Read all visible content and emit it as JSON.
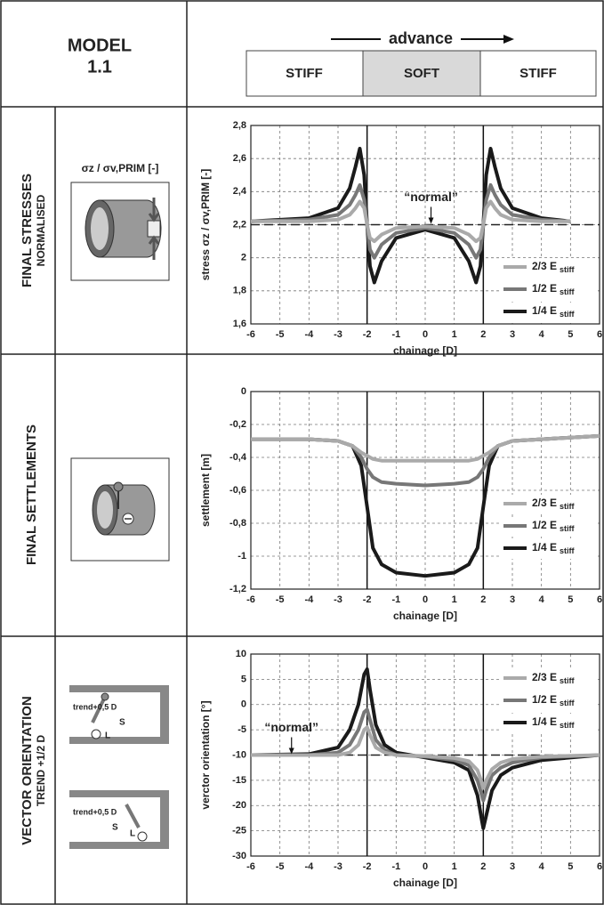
{
  "header": {
    "model": "MODEL",
    "model_no": "1.1",
    "advance": "advance",
    "zones": [
      "STIFF",
      "SOFT",
      "STIFF"
    ]
  },
  "rows": [
    {
      "title": "FINAL STRESSES",
      "subtitle": "NORMALISED",
      "icon_label": "σz / σv,PRIM [-]"
    },
    {
      "title": "FINAL SETTLEMENTS"
    },
    {
      "title": "VECTOR ORIENTATION",
      "subtitle": "TREND +1/2 D",
      "icon_texts": [
        "trend+0,5 D",
        "S",
        "L",
        "trend+0,5 D",
        "S",
        "L"
      ]
    }
  ],
  "chart_data": [
    {
      "type": "line",
      "xlabel": "chainage [D]",
      "ylabel": "stress  σz / σv,PRIM [-]",
      "xlim": [
        -6,
        6
      ],
      "xticks": [
        -6,
        -5,
        -4,
        -3,
        -2,
        -1,
        0,
        1,
        2,
        3,
        4,
        5,
        6
      ],
      "ylim": [
        1.6,
        2.8
      ],
      "yticks": [
        {
          "value": 1.6,
          "label": "1,6"
        },
        {
          "value": 1.8,
          "label": "1,8"
        },
        2,
        {
          "value": 2.2,
          "label": "2,2"
        },
        {
          "value": 2.4,
          "label": "2,4"
        },
        {
          "value": 2.6,
          "label": "2,6"
        },
        {
          "value": 2.8,
          "label": "2,8"
        }
      ],
      "grid": true,
      "reference_line": 2.2,
      "boundaries": [
        -2,
        2
      ],
      "annotation": {
        "text": "“normal”",
        "x": 0.2,
        "y": 2.2
      },
      "x": [
        -6,
        -4,
        -3,
        -2.6,
        -2.4,
        -2.25,
        -2.1,
        -2,
        -1.9,
        -1.75,
        -1.5,
        -1,
        0,
        1,
        1.5,
        1.75,
        1.9,
        2,
        2.1,
        2.25,
        2.4,
        2.6,
        3,
        4,
        5
      ],
      "series": [
        {
          "name": "2/3 E",
          "subscript": "stiff",
          "color": "#aaaaaa",
          "values": [
            2.22,
            2.22,
            2.23,
            2.26,
            2.3,
            2.34,
            2.3,
            2.2,
            2.12,
            2.1,
            2.14,
            2.18,
            2.19,
            2.18,
            2.14,
            2.1,
            2.12,
            2.2,
            2.3,
            2.34,
            2.3,
            2.26,
            2.23,
            2.22,
            2.22
          ]
        },
        {
          "name": "1/2 E",
          "subscript": "stiff",
          "color": "#777777",
          "values": [
            2.22,
            2.23,
            2.26,
            2.32,
            2.38,
            2.44,
            2.35,
            2.2,
            2.05,
            2.0,
            2.08,
            2.15,
            2.18,
            2.15,
            2.08,
            2.0,
            2.05,
            2.2,
            2.35,
            2.44,
            2.38,
            2.32,
            2.26,
            2.23,
            2.22
          ]
        },
        {
          "name": "1/4 E",
          "subscript": "stiff",
          "color": "#1a1a1a",
          "values": [
            2.22,
            2.24,
            2.3,
            2.42,
            2.55,
            2.66,
            2.5,
            2.2,
            1.95,
            1.85,
            1.98,
            2.12,
            2.17,
            2.12,
            1.98,
            1.85,
            1.95,
            2.2,
            2.5,
            2.66,
            2.55,
            2.42,
            2.3,
            2.24,
            2.22
          ]
        }
      ]
    },
    {
      "type": "line",
      "xlabel": "chainage [D]",
      "ylabel": "settlement [m]",
      "xlim": [
        -6,
        6
      ],
      "xticks": [
        -6,
        -5,
        -4,
        -3,
        -2,
        -1,
        0,
        1,
        2,
        3,
        4,
        5,
        6
      ],
      "ylim": [
        -1.2,
        0
      ],
      "yticks": [
        {
          "value": -1.2,
          "label": "-1,2"
        },
        -1,
        {
          "value": -0.8,
          "label": "-0,8"
        },
        {
          "value": -0.6,
          "label": "-0,6"
        },
        {
          "value": -0.4,
          "label": "-0,4"
        },
        {
          "value": -0.2,
          "label": "-0,2"
        },
        0
      ],
      "grid": true,
      "boundaries": [
        -2,
        2
      ],
      "x": [
        -6,
        -4,
        -3,
        -2.5,
        -2.2,
        -2,
        -1.8,
        -1.5,
        -1,
        0,
        1,
        1.5,
        1.8,
        2,
        2.2,
        2.5,
        3,
        4,
        6
      ],
      "series": [
        {
          "name": "2/3 E",
          "subscript": "stiff",
          "color": "#aaaaaa",
          "values": [
            -0.29,
            -0.29,
            -0.3,
            -0.33,
            -0.37,
            -0.39,
            -0.41,
            -0.42,
            -0.42,
            -0.42,
            -0.42,
            -0.42,
            -0.41,
            -0.39,
            -0.37,
            -0.33,
            -0.3,
            -0.29,
            -0.27
          ]
        },
        {
          "name": "1/2 E",
          "subscript": "stiff",
          "color": "#777777",
          "values": [
            -0.29,
            -0.29,
            -0.3,
            -0.33,
            -0.4,
            -0.47,
            -0.52,
            -0.55,
            -0.56,
            -0.57,
            -0.56,
            -0.55,
            -0.52,
            -0.47,
            -0.4,
            -0.33,
            -0.3,
            -0.29,
            -0.27
          ]
        },
        {
          "name": "1/4 E",
          "subscript": "stiff",
          "color": "#1a1a1a",
          "values": [
            -0.29,
            -0.29,
            -0.3,
            -0.33,
            -0.45,
            -0.7,
            -0.95,
            -1.05,
            -1.1,
            -1.12,
            -1.1,
            -1.05,
            -0.95,
            -0.7,
            -0.45,
            -0.33,
            -0.3,
            -0.29,
            -0.27
          ]
        }
      ]
    },
    {
      "type": "line",
      "xlabel": "chainage [D]",
      "ylabel": "verctor orientation [°]",
      "xlim": [
        -6,
        6
      ],
      "xticks": [
        -6,
        -5,
        -4,
        -3,
        -2,
        -1,
        0,
        1,
        2,
        3,
        4,
        5,
        6
      ],
      "ylim": [
        -30,
        10
      ],
      "yticks": [
        -30,
        -25,
        -20,
        -15,
        -10,
        -5,
        0,
        5,
        10
      ],
      "grid": true,
      "reference_line": -10,
      "boundaries": [
        -2,
        2
      ],
      "annotation": {
        "text": "“normal”",
        "x": -4.6,
        "y": -10
      },
      "x": [
        -6,
        -4,
        -3,
        -2.6,
        -2.3,
        -2.1,
        -2,
        -1.9,
        -1.7,
        -1.4,
        -1,
        0,
        1,
        1.5,
        1.8,
        1.95,
        2,
        2.1,
        2.3,
        2.6,
        3,
        4,
        6
      ],
      "series": [
        {
          "name": "2/3 E",
          "subscript": "stiff",
          "color": "#aaaaaa",
          "values": [
            -10,
            -10,
            -10,
            -9.5,
            -8,
            -5,
            -4.5,
            -6,
            -8.5,
            -9.5,
            -10,
            -10.2,
            -10.6,
            -11.2,
            -13,
            -15.5,
            -16.5,
            -15,
            -12.8,
            -11.5,
            -10.8,
            -10.3,
            -10
          ]
        },
        {
          "name": "1/2 E",
          "subscript": "stiff",
          "color": "#777777",
          "values": [
            -10,
            -10,
            -9.5,
            -8,
            -5,
            -1.5,
            -1,
            -3,
            -7,
            -9,
            -10,
            -10.3,
            -11,
            -12,
            -15,
            -18,
            -19,
            -17,
            -14,
            -12.5,
            -11.5,
            -10.5,
            -10
          ]
        },
        {
          "name": "1/4 E",
          "subscript": "stiff",
          "color": "#1a1a1a",
          "values": [
            -10,
            -9.8,
            -8.5,
            -5,
            0,
            6,
            7,
            3,
            -4,
            -8,
            -9.5,
            -10.5,
            -11.5,
            -13,
            -18,
            -23,
            -24.5,
            -22,
            -17,
            -14,
            -12.5,
            -11,
            -10
          ]
        }
      ]
    }
  ]
}
